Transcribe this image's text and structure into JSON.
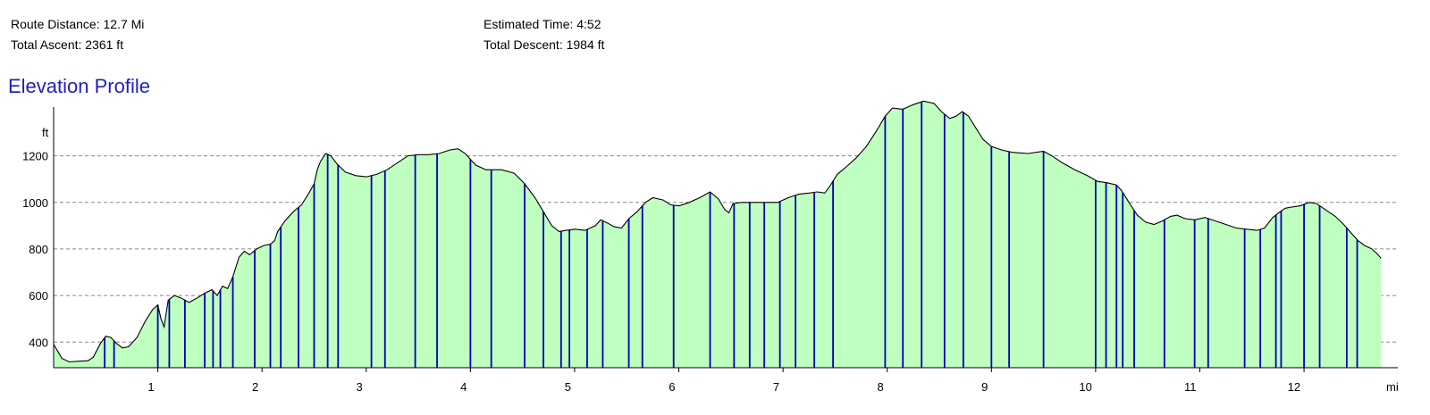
{
  "stats": {
    "route_distance": "Route Distance: 12.7 Mi",
    "total_ascent": "Total Ascent: 2361 ft",
    "estimated_time": "Estimated Time: 4:52",
    "total_descent": "Total Descent: 1984 ft"
  },
  "chart_title": "Elevation Profile",
  "chart_data": {
    "type": "area",
    "title": "Elevation Profile",
    "y_unit": "ft",
    "x_unit": "mi",
    "xlim": [
      0,
      12.9
    ],
    "ylim": [
      290,
      1390
    ],
    "y_ticks": [
      400,
      600,
      800,
      1000,
      1200
    ],
    "x_ticks": [
      1,
      2,
      3,
      4,
      5,
      6,
      7,
      8,
      9,
      10,
      11,
      12
    ],
    "grid": "horizontal dashed",
    "fill_color": "#bfffbf",
    "line_color": "#000000",
    "marker_color": "#0000b4",
    "profile": [
      [
        0.0,
        390
      ],
      [
        0.04,
        360
      ],
      [
        0.08,
        330
      ],
      [
        0.15,
        315
      ],
      [
        0.25,
        318
      ],
      [
        0.33,
        320
      ],
      [
        0.38,
        335
      ],
      [
        0.45,
        395
      ],
      [
        0.5,
        425
      ],
      [
        0.55,
        420
      ],
      [
        0.6,
        395
      ],
      [
        0.66,
        375
      ],
      [
        0.72,
        380
      ],
      [
        0.8,
        420
      ],
      [
        0.88,
        490
      ],
      [
        0.95,
        540
      ],
      [
        1.0,
        560
      ],
      [
        1.03,
        500
      ],
      [
        1.06,
        465
      ],
      [
        1.1,
        580
      ],
      [
        1.16,
        600
      ],
      [
        1.22,
        590
      ],
      [
        1.3,
        570
      ],
      [
        1.38,
        590
      ],
      [
        1.45,
        610
      ],
      [
        1.52,
        625
      ],
      [
        1.57,
        600
      ],
      [
        1.62,
        640
      ],
      [
        1.67,
        630
      ],
      [
        1.72,
        680
      ],
      [
        1.78,
        765
      ],
      [
        1.83,
        790
      ],
      [
        1.88,
        775
      ],
      [
        1.95,
        800
      ],
      [
        2.02,
        815
      ],
      [
        2.08,
        820
      ],
      [
        2.12,
        835
      ],
      [
        2.15,
        875
      ],
      [
        2.22,
        920
      ],
      [
        2.3,
        960
      ],
      [
        2.38,
        990
      ],
      [
        2.45,
        1040
      ],
      [
        2.5,
        1080
      ],
      [
        2.53,
        1140
      ],
      [
        2.56,
        1175
      ],
      [
        2.61,
        1210
      ],
      [
        2.66,
        1200
      ],
      [
        2.72,
        1165
      ],
      [
        2.8,
        1130
      ],
      [
        2.9,
        1115
      ],
      [
        3.0,
        1110
      ],
      [
        3.1,
        1120
      ],
      [
        3.2,
        1140
      ],
      [
        3.3,
        1170
      ],
      [
        3.4,
        1200
      ],
      [
        3.5,
        1205
      ],
      [
        3.6,
        1205
      ],
      [
        3.7,
        1210
      ],
      [
        3.8,
        1225
      ],
      [
        3.88,
        1230
      ],
      [
        3.95,
        1210
      ],
      [
        4.05,
        1160
      ],
      [
        4.15,
        1140
      ],
      [
        4.3,
        1140
      ],
      [
        4.42,
        1125
      ],
      [
        4.52,
        1080
      ],
      [
        4.62,
        1020
      ],
      [
        4.7,
        960
      ],
      [
        4.78,
        900
      ],
      [
        4.85,
        875
      ],
      [
        4.92,
        880
      ],
      [
        5.0,
        885
      ],
      [
        5.1,
        880
      ],
      [
        5.2,
        900
      ],
      [
        5.25,
        925
      ],
      [
        5.32,
        910
      ],
      [
        5.38,
        895
      ],
      [
        5.45,
        890
      ],
      [
        5.52,
        930
      ],
      [
        5.6,
        960
      ],
      [
        5.68,
        1000
      ],
      [
        5.75,
        1020
      ],
      [
        5.85,
        1010
      ],
      [
        5.92,
        990
      ],
      [
        6.0,
        985
      ],
      [
        6.1,
        1000
      ],
      [
        6.2,
        1020
      ],
      [
        6.3,
        1045
      ],
      [
        6.38,
        1015
      ],
      [
        6.44,
        970
      ],
      [
        6.48,
        955
      ],
      [
        6.52,
        995
      ],
      [
        6.6,
        1000
      ],
      [
        6.8,
        1000
      ],
      [
        6.95,
        1000
      ],
      [
        7.05,
        1020
      ],
      [
        7.15,
        1035
      ],
      [
        7.25,
        1040
      ],
      [
        7.33,
        1045
      ],
      [
        7.4,
        1040
      ],
      [
        7.45,
        1070
      ],
      [
        7.52,
        1120
      ],
      [
        7.6,
        1150
      ],
      [
        7.7,
        1190
      ],
      [
        7.8,
        1240
      ],
      [
        7.9,
        1310
      ],
      [
        7.98,
        1370
      ],
      [
        8.05,
        1405
      ],
      [
        8.15,
        1400
      ],
      [
        8.25,
        1420
      ],
      [
        8.35,
        1435
      ],
      [
        8.45,
        1425
      ],
      [
        8.52,
        1390
      ],
      [
        8.6,
        1360
      ],
      [
        8.66,
        1370
      ],
      [
        8.72,
        1390
      ],
      [
        8.78,
        1370
      ],
      [
        8.85,
        1320
      ],
      [
        8.92,
        1270
      ],
      [
        9.0,
        1240
      ],
      [
        9.1,
        1225
      ],
      [
        9.2,
        1215
      ],
      [
        9.35,
        1210
      ],
      [
        9.5,
        1220
      ],
      [
        9.58,
        1200
      ],
      [
        9.68,
        1170
      ],
      [
        9.8,
        1140
      ],
      [
        9.92,
        1115
      ],
      [
        10.02,
        1090
      ],
      [
        10.1,
        1085
      ],
      [
        10.2,
        1075
      ],
      [
        10.25,
        1050
      ],
      [
        10.32,
        1000
      ],
      [
        10.4,
        945
      ],
      [
        10.48,
        915
      ],
      [
        10.56,
        905
      ],
      [
        10.64,
        920
      ],
      [
        10.72,
        940
      ],
      [
        10.78,
        945
      ],
      [
        10.86,
        930
      ],
      [
        10.95,
        925
      ],
      [
        11.05,
        935
      ],
      [
        11.15,
        920
      ],
      [
        11.25,
        905
      ],
      [
        11.35,
        890
      ],
      [
        11.45,
        885
      ],
      [
        11.55,
        880
      ],
      [
        11.62,
        890
      ],
      [
        11.7,
        935
      ],
      [
        11.77,
        960
      ],
      [
        11.82,
        975
      ],
      [
        11.88,
        980
      ],
      [
        11.96,
        985
      ],
      [
        12.05,
        1000
      ],
      [
        12.12,
        995
      ],
      [
        12.2,
        970
      ],
      [
        12.3,
        940
      ],
      [
        12.38,
        905
      ],
      [
        12.45,
        870
      ],
      [
        12.52,
        835
      ],
      [
        12.58,
        815
      ],
      [
        12.65,
        800
      ],
      [
        12.7,
        780
      ],
      [
        12.74,
        760
      ]
    ],
    "waypoint_miles": [
      0.49,
      0.58,
      1.0,
      1.11,
      1.26,
      1.45,
      1.53,
      1.6,
      1.72,
      1.93,
      2.08,
      2.18,
      2.35,
      2.5,
      2.63,
      2.73,
      3.05,
      3.18,
      3.47,
      3.68,
      4.0,
      4.2,
      4.52,
      4.7,
      4.87,
      4.95,
      5.12,
      5.27,
      5.52,
      5.65,
      5.95,
      6.3,
      6.53,
      6.68,
      6.82,
      6.97,
      7.12,
      7.3,
      7.48,
      7.98,
      8.15,
      8.33,
      8.55,
      8.73,
      9.0,
      9.17,
      9.5,
      10.0,
      10.1,
      10.2,
      10.26,
      10.37,
      10.66,
      10.95,
      11.08,
      11.43,
      11.58,
      11.73,
      11.78,
      12.0,
      12.15,
      12.41,
      12.51
    ]
  }
}
